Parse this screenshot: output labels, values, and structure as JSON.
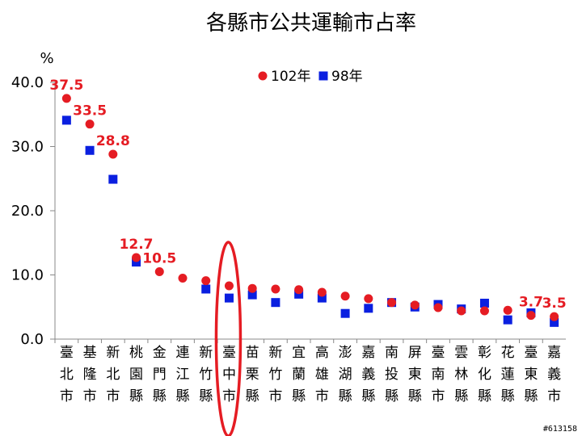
{
  "chart_data": {
    "type": "scatter",
    "title": "各縣市公共運輸市占率",
    "ylabel": "%",
    "ylim": [
      0,
      40
    ],
    "yticks": [
      "0.0",
      "10.0",
      "20.0",
      "30.0",
      "40.0"
    ],
    "legend_position": "top",
    "categories": [
      "臺北市",
      "基隆市",
      "新北市",
      "桃園縣",
      "金門縣",
      "連江縣",
      "新竹縣",
      "臺中市",
      "苗栗縣",
      "新竹市",
      "宜蘭縣",
      "高雄市",
      "澎湖縣",
      "嘉義縣",
      "南投縣",
      "屏東縣",
      "臺南市",
      "雲林縣",
      "彰化縣",
      "花蓮縣",
      "臺東縣",
      "嘉義市"
    ],
    "series": [
      {
        "name": "102年",
        "marker": "circle",
        "color": "#e51c23",
        "values": [
          37.5,
          33.5,
          28.8,
          12.7,
          10.5,
          9.5,
          9.1,
          8.3,
          7.9,
          7.8,
          7.7,
          7.3,
          6.7,
          6.3,
          5.7,
          5.3,
          4.9,
          4.4,
          4.4,
          4.5,
          3.7,
          3.5
        ]
      },
      {
        "name": "98年",
        "marker": "square",
        "color": "#0a1fe0",
        "values": [
          34.1,
          29.4,
          24.9,
          12.0,
          null,
          null,
          7.8,
          6.4,
          6.9,
          5.7,
          7.0,
          6.4,
          4.0,
          4.8,
          5.7,
          5.0,
          5.4,
          4.7,
          5.6,
          3.0,
          4.1,
          2.6
        ]
      }
    ],
    "data_labels": [
      {
        "index": 0,
        "text": "37.5"
      },
      {
        "index": 1,
        "text": "33.5"
      },
      {
        "index": 2,
        "text": "28.8"
      },
      {
        "index": 3,
        "text": "12.7"
      },
      {
        "index": 4,
        "text": "10.5"
      },
      {
        "index": 20,
        "text": "3.7"
      },
      {
        "index": 21,
        "text": "3.5"
      }
    ],
    "highlight": {
      "category": "臺中市",
      "shape": "ellipse",
      "color": "#e51c23"
    }
  },
  "watermark": "#613158"
}
